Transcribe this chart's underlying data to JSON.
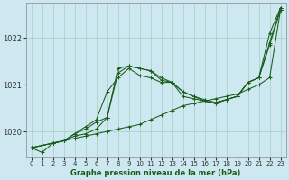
{
  "background_color": "#cde8f0",
  "grid_color": "#a8d4c8",
  "line_color": "#1a5c1a",
  "xlabel": "Graphe pression niveau de la mer (hPa)",
  "xlim": [
    -0.5,
    23.5
  ],
  "ylim": [
    1019.45,
    1022.75
  ],
  "yticks": [
    1020,
    1021,
    1022
  ],
  "xticks": [
    0,
    1,
    2,
    3,
    4,
    5,
    6,
    7,
    8,
    9,
    10,
    11,
    12,
    13,
    14,
    15,
    16,
    17,
    18,
    19,
    20,
    21,
    22,
    23
  ],
  "series": [
    {
      "x": [
        0,
        1,
        2,
        3,
        4,
        5,
        6,
        7,
        8,
        9,
        10,
        11,
        12,
        13,
        14,
        15,
        16,
        17,
        18,
        19,
        20,
        21,
        22,
        23
      ],
      "y": [
        1019.65,
        1019.55,
        1019.75,
        1019.8,
        1019.85,
        1019.9,
        1019.95,
        1020.0,
        1020.05,
        1020.1,
        1020.15,
        1020.25,
        1020.35,
        1020.45,
        1020.55,
        1020.6,
        1020.65,
        1020.7,
        1020.75,
        1020.8,
        1020.9,
        1021.0,
        1021.15,
        1022.6
      ]
    },
    {
      "x": [
        0,
        2,
        3,
        4,
        5,
        6,
        7,
        8,
        9,
        10,
        11,
        12,
        13,
        14,
        15,
        16,
        17,
        18,
        19,
        20,
        21,
        22,
        23
      ],
      "y": [
        1019.65,
        1019.75,
        1019.8,
        1019.95,
        1020.1,
        1020.25,
        1020.85,
        1021.15,
        1021.35,
        1021.2,
        1021.15,
        1021.05,
        1021.05,
        1020.75,
        1020.7,
        1020.65,
        1020.6,
        1020.68,
        1020.75,
        1021.05,
        1021.15,
        1021.85,
        1022.6
      ]
    },
    {
      "x": [
        0,
        2,
        3,
        4,
        5,
        6,
        7,
        8,
        9,
        10,
        11,
        12,
        13,
        14,
        15,
        16,
        17,
        18,
        19,
        20,
        21,
        22,
        23
      ],
      "y": [
        1019.65,
        1019.75,
        1019.8,
        1019.9,
        1019.95,
        1020.05,
        1020.3,
        1021.35,
        1021.4,
        1021.35,
        1021.3,
        1021.15,
        1021.05,
        1020.85,
        1020.75,
        1020.68,
        1020.62,
        1020.68,
        1020.75,
        1021.05,
        1021.15,
        1022.1,
        1022.65
      ]
    },
    {
      "x": [
        0,
        2,
        3,
        4,
        5,
        6,
        7,
        8,
        9,
        10,
        11,
        12,
        13,
        14,
        15,
        16,
        17,
        18,
        19,
        20,
        21,
        22,
        23
      ],
      "y": [
        1019.65,
        1019.75,
        1019.8,
        1019.95,
        1020.05,
        1020.2,
        1020.3,
        1021.25,
        1021.4,
        1021.35,
        1021.3,
        1021.1,
        1021.05,
        1020.85,
        1020.75,
        1020.65,
        1020.6,
        1020.68,
        1020.75,
        1021.05,
        1021.15,
        1021.9,
        1022.65
      ]
    }
  ]
}
